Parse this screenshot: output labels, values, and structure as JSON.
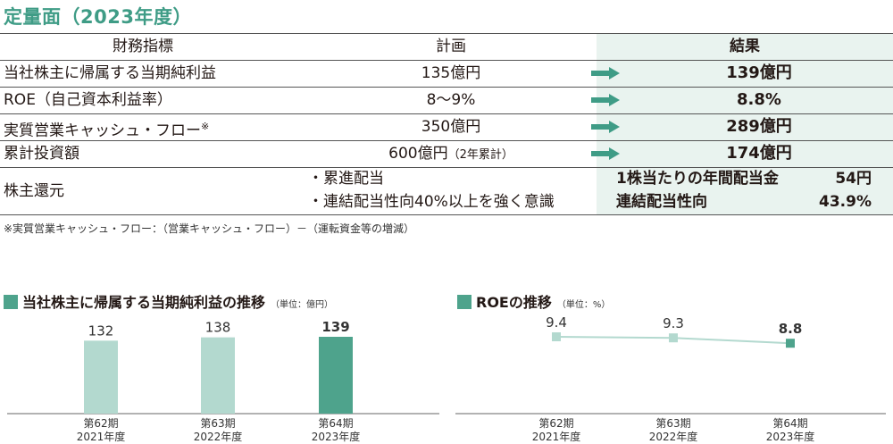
{
  "heading": "定量面（2023年度）",
  "table": {
    "headers": {
      "metric": "財務指標",
      "plan": "計画",
      "result": "結果"
    },
    "rows": [
      {
        "metric": "当社株主に帰属する当期純利益",
        "plan": "135億円",
        "result": "139億円"
      },
      {
        "metric": "ROE（自己資本利益率）",
        "plan": "8〜9%",
        "result": "8.8%"
      },
      {
        "metric": "実質営業キャッシュ・フロー",
        "metric_note": "※",
        "plan": "350億円",
        "result": "289億円"
      },
      {
        "metric": "累計投資額",
        "plan": "600億円",
        "plan_note": "（2年累計）",
        "result": "174億円"
      }
    ],
    "shareholder": {
      "metric": "株主還元",
      "plan_items": [
        "・累進配当",
        "・連結配当性向40%以上を強く意識"
      ],
      "results": [
        {
          "label": "1株当たりの年間配当金",
          "value": "54円"
        },
        {
          "label": "連結配当性向",
          "value": "43.9%"
        }
      ]
    }
  },
  "footnote": "※実質営業キャッシュ・フロー：（営業キャッシュ・フロー）－（運転資金等の増減）",
  "colors": {
    "accent": "#3f9c86",
    "bar_light": "#b3d9cf",
    "bar_dark": "#4ea38c",
    "result_bg": "#e9f3ef",
    "line": "#b3d9cf"
  },
  "chart_data": [
    {
      "type": "bar",
      "title": "当社株主に帰属する当期純利益の推移",
      "unit": "（単位：億円）",
      "categories": [
        "第62期",
        "第63期",
        "第64期"
      ],
      "category_sublabels": [
        "2021年度",
        "2022年度",
        "2023年度"
      ],
      "values": [
        132,
        138,
        139
      ],
      "value_labels": [
        "132",
        "138",
        "139"
      ],
      "highlight_index": 2,
      "ylim": [
        0,
        139
      ]
    },
    {
      "type": "line",
      "title": "ROEの推移",
      "unit": "（単位：%）",
      "categories": [
        "第62期",
        "第63期",
        "第64期"
      ],
      "category_sublabels": [
        "2021年度",
        "2022年度",
        "2023年度"
      ],
      "values": [
        9.4,
        9.3,
        8.8
      ],
      "value_labels": [
        "9.4",
        "9.3",
        "8.8"
      ],
      "highlight_index": 2
    }
  ]
}
